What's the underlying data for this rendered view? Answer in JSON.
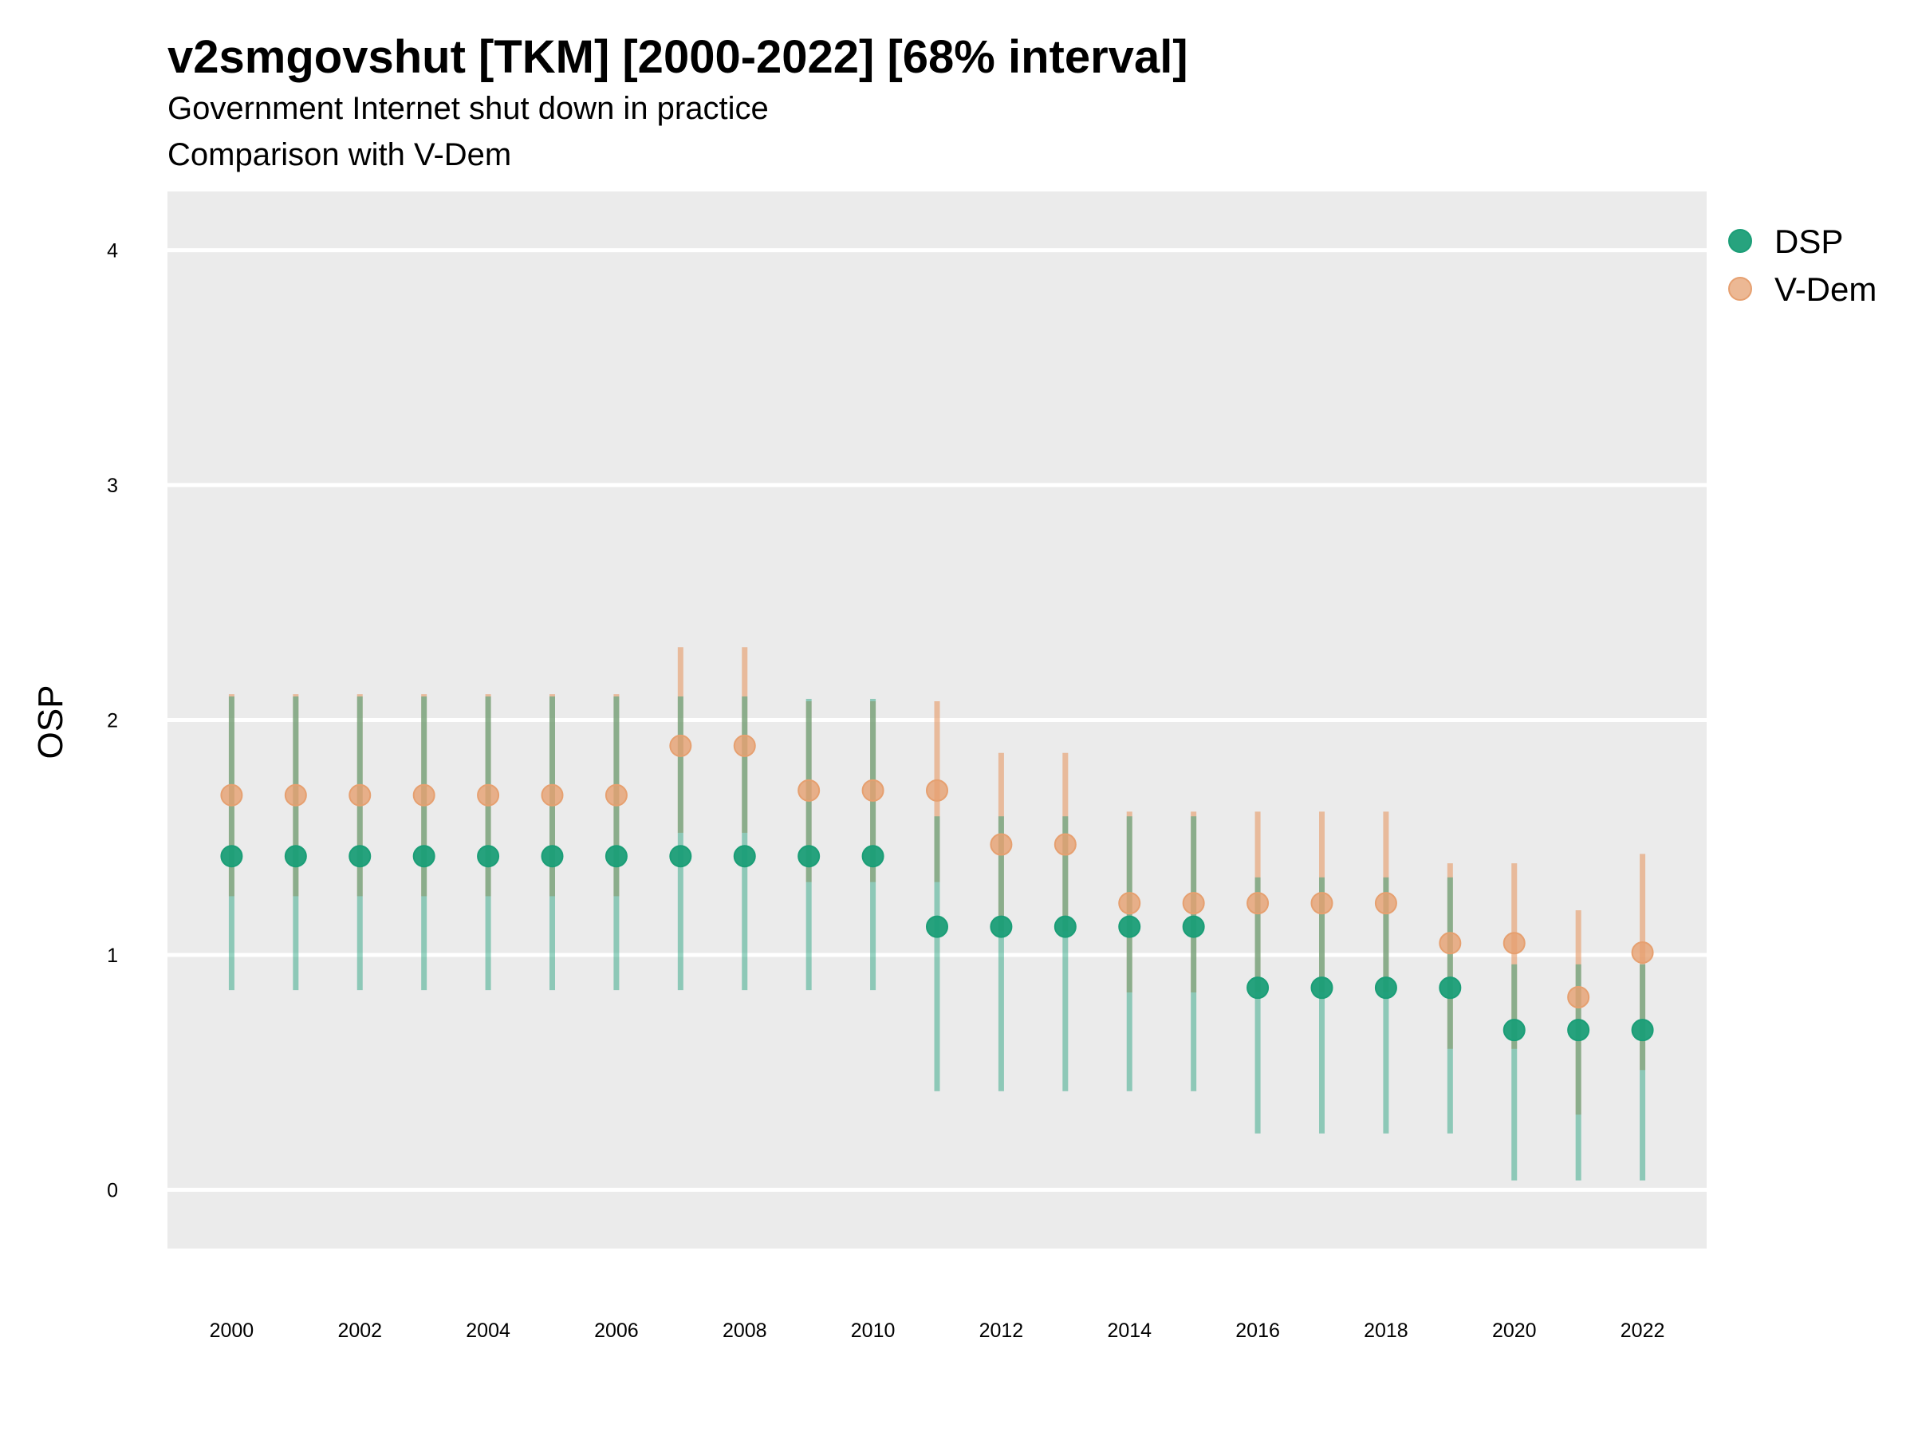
{
  "chart_data": {
    "type": "scatter",
    "title": "v2smgovshut [TKM] [2000-2022] [68% interval]",
    "subtitle": "Government Internet shut down in practice",
    "subtitle2": "Comparison with V-Dem",
    "ylabel": "OSP",
    "xlabel": "",
    "ylim": [
      -0.25,
      4.25
    ],
    "yticks": [
      0,
      1,
      2,
      3,
      4
    ],
    "xticks": [
      2000,
      2002,
      2004,
      2006,
      2008,
      2010,
      2012,
      2014,
      2016,
      2018,
      2020,
      2022
    ],
    "x": [
      2000,
      2001,
      2002,
      2003,
      2004,
      2005,
      2006,
      2007,
      2008,
      2009,
      2010,
      2011,
      2012,
      2013,
      2014,
      2015,
      2016,
      2017,
      2018,
      2019,
      2020,
      2021,
      2022
    ],
    "grid": true,
    "legend_position": "right",
    "series": [
      {
        "name": "DSP",
        "color": "#1b9e77",
        "values": [
          1.42,
          1.42,
          1.42,
          1.42,
          1.42,
          1.42,
          1.42,
          1.42,
          1.42,
          1.42,
          1.42,
          1.12,
          1.12,
          1.12,
          1.12,
          1.12,
          0.86,
          0.86,
          0.86,
          0.86,
          0.68,
          0.68,
          0.68
        ],
        "lower": [
          0.85,
          0.85,
          0.85,
          0.85,
          0.85,
          0.85,
          0.85,
          0.85,
          0.85,
          0.85,
          0.85,
          0.42,
          0.42,
          0.42,
          0.42,
          0.42,
          0.24,
          0.24,
          0.24,
          0.24,
          0.04,
          0.04,
          0.04
        ],
        "upper": [
          2.1,
          2.1,
          2.1,
          2.1,
          2.1,
          2.1,
          2.1,
          2.1,
          2.1,
          2.09,
          2.09,
          1.59,
          1.59,
          1.59,
          1.59,
          1.59,
          1.33,
          1.33,
          1.33,
          1.33,
          0.96,
          0.96,
          0.96
        ]
      },
      {
        "name": "V-Dem",
        "color": "#e6a070",
        "values": [
          1.68,
          1.68,
          1.68,
          1.68,
          1.68,
          1.68,
          1.68,
          1.89,
          1.89,
          1.7,
          1.7,
          1.7,
          1.47,
          1.47,
          1.22,
          1.22,
          1.22,
          1.22,
          1.22,
          1.05,
          1.05,
          0.82,
          1.01
        ],
        "lower": [
          1.25,
          1.25,
          1.25,
          1.25,
          1.25,
          1.25,
          1.25,
          1.52,
          1.52,
          1.31,
          1.31,
          1.31,
          1.1,
          1.1,
          0.84,
          0.84,
          0.84,
          0.84,
          0.84,
          0.6,
          0.6,
          0.32,
          0.51
        ],
        "upper": [
          2.11,
          2.11,
          2.11,
          2.11,
          2.11,
          2.11,
          2.11,
          2.31,
          2.31,
          2.08,
          2.08,
          2.08,
          1.86,
          1.86,
          1.61,
          1.61,
          1.61,
          1.61,
          1.61,
          1.39,
          1.39,
          1.19,
          1.43
        ]
      }
    ]
  }
}
